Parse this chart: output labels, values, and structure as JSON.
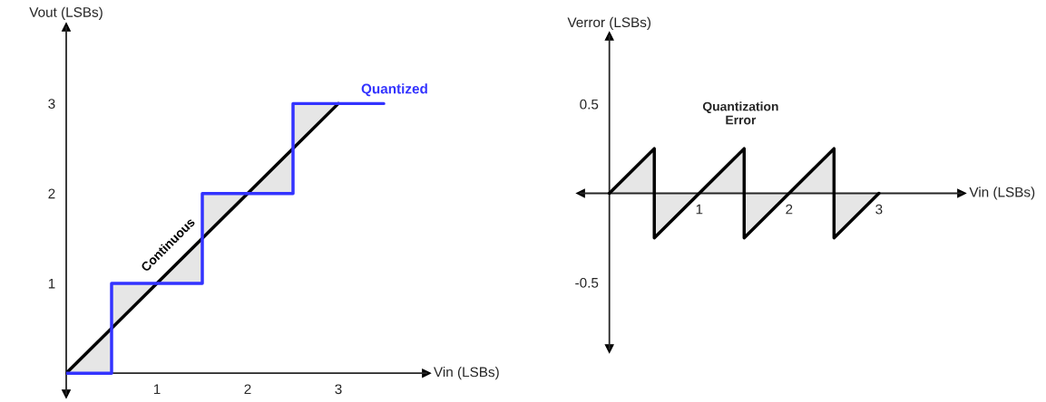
{
  "chart_data": [
    {
      "type": "line",
      "xlabel": "Vin (LSBs)",
      "ylabel": "Vout (LSBs)",
      "xlim": [
        0,
        3.97
      ],
      "ylim": [
        -0.23,
        3.85
      ],
      "xticks": [
        1,
        2,
        3
      ],
      "yticks": [
        1,
        2,
        3
      ],
      "grid": false,
      "legend": false,
      "series": [
        {
          "name": "Continuous",
          "color": "#000000",
          "x": [
            0,
            3
          ],
          "values": [
            0,
            3
          ]
        },
        {
          "name": "Quantized",
          "color": "#3333ff",
          "x": [
            0,
            0.5,
            0.5,
            1.5,
            1.5,
            2.5,
            2.5,
            3.5
          ],
          "values": [
            0,
            0,
            1,
            1,
            2,
            2,
            3,
            3
          ]
        }
      ]
    },
    {
      "type": "line",
      "xlabel": "Vin (LSBs)",
      "ylabel": "Verror (LSBs)",
      "annotations": [
        "Quantization\nError"
      ],
      "xlim": [
        -0.32,
        3.92
      ],
      "ylim": [
        -0.87,
        0.88
      ],
      "xticks": [
        1,
        2,
        3
      ],
      "yticks": [
        0.5,
        -0.5
      ],
      "grid": false,
      "legend": false,
      "series": [
        {
          "color": "#000000",
          "x": [
            0,
            0.5,
            0.5,
            1.5,
            1.5,
            2.5,
            2.5,
            3
          ],
          "values": [
            0,
            0.25,
            -0.25,
            0.25,
            -0.25,
            0.25,
            -0.25,
            0
          ]
        }
      ]
    }
  ]
}
